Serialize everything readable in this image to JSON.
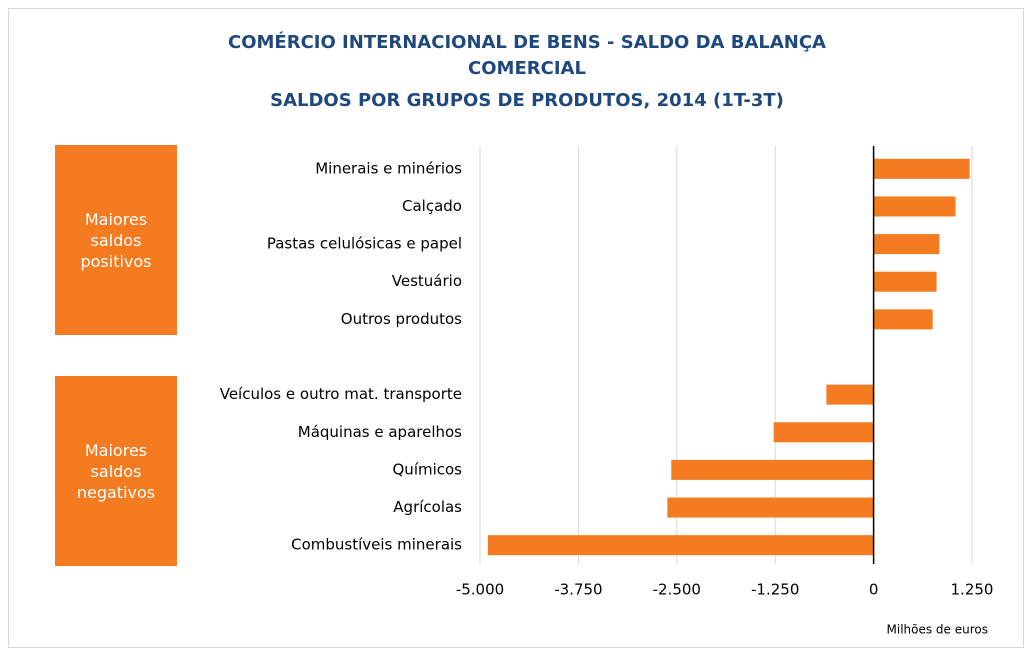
{
  "chart_data": {
    "type": "hbar",
    "title": "COMÉRCIO INTERNACIONAL DE BENS - SALDO DA BALANÇA COMERCIAL",
    "subtitle": "SALDOS POR GRUPOS DE PRODUTOS, 2014 (1T-3T)",
    "x_label": "Milhões de euros",
    "annotations": [
      "Maiores saldos positivos",
      "Maiores saldos negativos"
    ],
    "categories": [
      "Minerais e minérios",
      "Calçado",
      "Pastas celulósicas e papel",
      "Vestuário",
      "Outros produtos",
      null,
      "Veículos e outro mat. transporte",
      "Máquinas e aparelhos",
      "Químicos",
      "Agrícolas",
      "Combustíveis minerais"
    ],
    "values": [
      1220,
      1040,
      835,
      800,
      750,
      null,
      -600,
      -1270,
      -2570,
      -2620,
      -4900
    ],
    "color": "#f47b20",
    "xlim": [
      -5000,
      1250
    ],
    "xticks": [
      {
        "value": -5000,
        "label": "-5.000"
      },
      {
        "value": -3750,
        "label": "-3.750"
      },
      {
        "value": -2500,
        "label": "-2.500"
      },
      {
        "value": -1250,
        "label": "-1.250"
      },
      0,
      {
        "value": 1250,
        "label": "1.250"
      }
    ],
    "grid": true
  }
}
